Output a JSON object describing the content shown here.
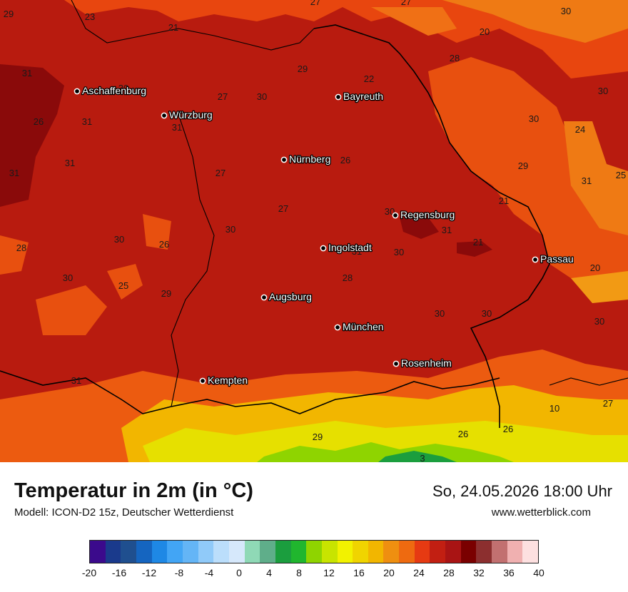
{
  "title": "Temperatur in 2m (in °C)",
  "model": "Modell: ICON-D2 15z, Deutscher Wetterdienst",
  "datetime": "So, 24.05.2026 18:00 Uhr",
  "website": "www.wetterblick.com",
  "legend": {
    "colors": [
      "#3b0a8c",
      "#1a3a8c",
      "#1f4f8f",
      "#1565c0",
      "#1e88e5",
      "#42a5f5",
      "#64b5f6",
      "#90caf9",
      "#bbdefb",
      "#d6e8fb",
      "#8fd9b6",
      "#5fae8a",
      "#1b9e3e",
      "#20b62e",
      "#8fd400",
      "#c8e400",
      "#f2f200",
      "#f0d400",
      "#f2b600",
      "#ef8f10",
      "#ee6a10",
      "#e63a12",
      "#c21f12",
      "#a91414",
      "#7a0000",
      "#8c2f2f",
      "#c27070",
      "#f0b0b0",
      "#fde0e0"
    ],
    "tick_labels": [
      "-20",
      "-16",
      "-12",
      "-8",
      "-4",
      "0",
      "4",
      "8",
      "12",
      "16",
      "20",
      "24",
      "28",
      "32",
      "36",
      "40"
    ]
  },
  "cities": [
    {
      "name": "Aschaffenburg"
    },
    {
      "name": "Würzburg"
    },
    {
      "name": "Bayreuth"
    },
    {
      "name": "Nürnberg"
    },
    {
      "name": "Regensburg"
    },
    {
      "name": "Ingolstadt"
    },
    {
      "name": "Passau"
    },
    {
      "name": "Augsburg"
    },
    {
      "name": "München"
    },
    {
      "name": "Rosenheim"
    },
    {
      "name": "Kempten"
    }
  ],
  "temperature_labels": [
    "29",
    "23",
    "27",
    "27",
    "21",
    "30",
    "20",
    "28",
    "29",
    "31",
    "22",
    "30",
    "27",
    "30",
    "30",
    "26",
    "31",
    "31",
    "30",
    "24",
    "31",
    "31",
    "27",
    "26",
    "25",
    "29",
    "31",
    "21",
    "27",
    "30",
    "30",
    "31",
    "21",
    "30",
    "26",
    "30",
    "28",
    "31",
    "30",
    "20",
    "25",
    "28",
    "29",
    "30",
    "30",
    "30",
    "31",
    "10",
    "27",
    "29",
    "26",
    "26",
    "3"
  ]
}
